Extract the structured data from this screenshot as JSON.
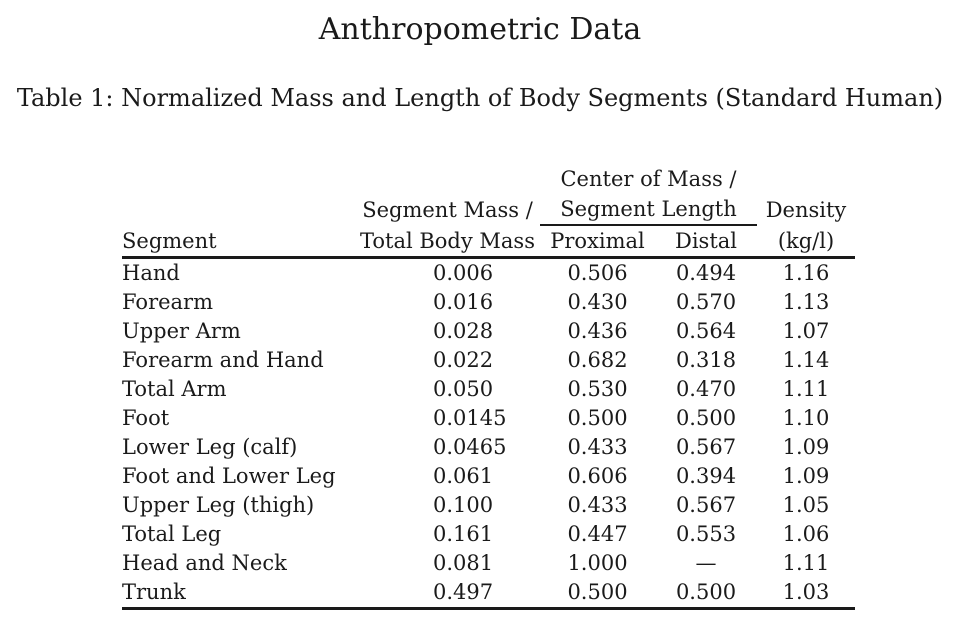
{
  "page": {
    "title": "Anthropometric Data",
    "caption": "Table 1: Normalized Mass and Length of Body Segments (Standard Human)",
    "ink_color": "#1a1a1a",
    "background_color": "#ffffff"
  },
  "table": {
    "header": {
      "segment": "Segment",
      "mass_line1": "Segment Mass /",
      "mass_line2": "Total Body Mass",
      "com_group_line1": "Center of Mass /",
      "com_group_line2": "Segment Length",
      "proximal": "Proximal",
      "distal": "Distal",
      "density_line1": "Density",
      "density_line2": "(kg/l)"
    },
    "rows": [
      {
        "segment": "Hand",
        "mass": "0.006",
        "proximal": "0.506",
        "distal": "0.494",
        "density": "1.16"
      },
      {
        "segment": "Forearm",
        "mass": "0.016",
        "proximal": "0.430",
        "distal": "0.570",
        "density": "1.13"
      },
      {
        "segment": "Upper Arm",
        "mass": "0.028",
        "proximal": "0.436",
        "distal": "0.564",
        "density": "1.07"
      },
      {
        "segment": "Forearm and Hand",
        "mass": "0.022",
        "proximal": "0.682",
        "distal": "0.318",
        "density": "1.14"
      },
      {
        "segment": "Total Arm",
        "mass": "0.050",
        "proximal": "0.530",
        "distal": "0.470",
        "density": "1.11"
      },
      {
        "segment": "Foot",
        "mass": "0.0145",
        "proximal": "0.500",
        "distal": "0.500",
        "density": "1.10"
      },
      {
        "segment": "Lower Leg (calf)",
        "mass": "0.0465",
        "proximal": "0.433",
        "distal": "0.567",
        "density": "1.09"
      },
      {
        "segment": "Foot and Lower Leg",
        "mass": "0.061",
        "proximal": "0.606",
        "distal": "0.394",
        "density": "1.09"
      },
      {
        "segment": "Upper Leg (thigh)",
        "mass": "0.100",
        "proximal": "0.433",
        "distal": "0.567",
        "density": "1.05"
      },
      {
        "segment": "Total Leg",
        "mass": "0.161",
        "proximal": "0.447",
        "distal": "0.553",
        "density": "1.06"
      },
      {
        "segment": "Head and Neck",
        "mass": "0.081",
        "proximal": "1.000",
        "distal": "—",
        "density": "1.11"
      },
      {
        "segment": "Trunk",
        "mass": "0.497",
        "proximal": "0.500",
        "distal": "0.500",
        "density": "1.03"
      }
    ]
  }
}
